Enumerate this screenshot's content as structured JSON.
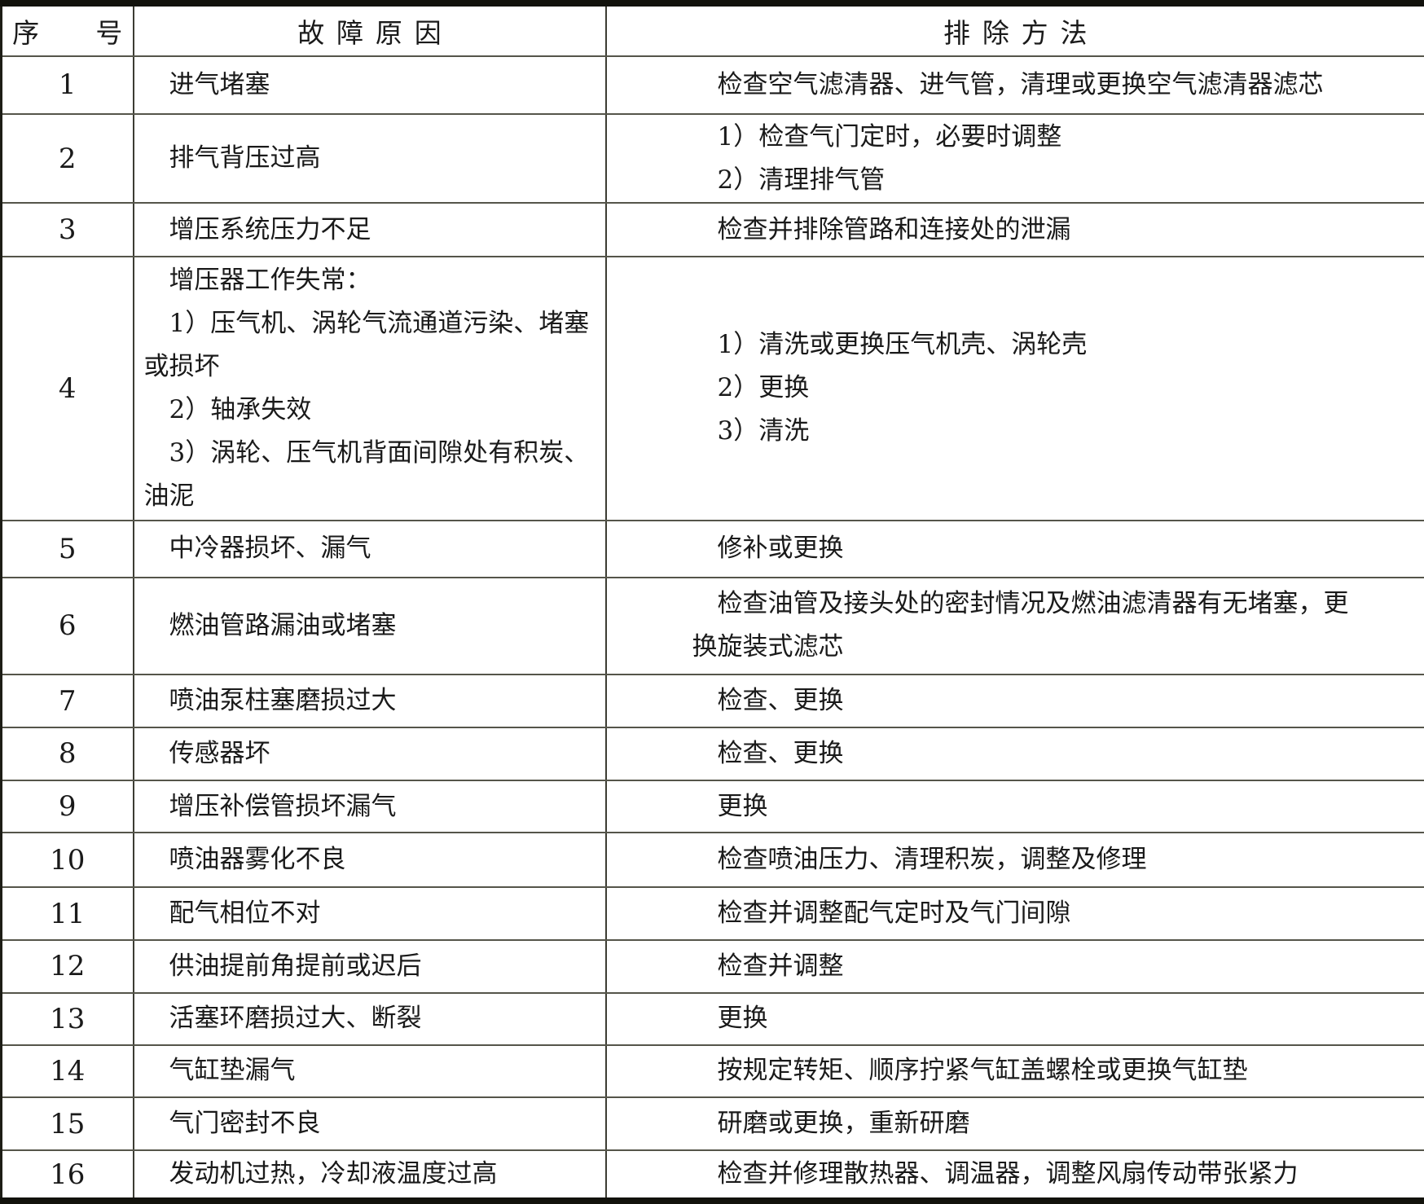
{
  "table": {
    "columns": [
      {
        "key": "index",
        "label": "序号"
      },
      {
        "key": "cause",
        "label": "故障原因"
      },
      {
        "key": "remedy",
        "label": "排除方法"
      }
    ],
    "rows": [
      {
        "index": "1",
        "cause": [
          "进气堵塞"
        ],
        "remedy": [
          "检查空气滤清器、进气管，清理或更换空气滤清器滤芯"
        ]
      },
      {
        "index": "2",
        "cause": [
          "排气背压过高"
        ],
        "remedy": [
          "1）检查气门定时，必要时调整",
          "2）清理排气管"
        ]
      },
      {
        "index": "3",
        "cause": [
          "增压系统压力不足"
        ],
        "remedy": [
          "检查并排除管路和连接处的泄漏"
        ]
      },
      {
        "index": "4",
        "cause": [
          "增压器工作失常：",
          "1）压气机、涡轮气流通道污染、堵塞或损坏",
          "2）轴承失效",
          "3）涡轮、压气机背面间隙处有积炭、油泥"
        ],
        "remedy": [
          "1）清洗或更换压气机壳、涡轮壳",
          "2）更换",
          "3）清洗"
        ]
      },
      {
        "index": "5",
        "cause": [
          "中冷器损坏、漏气"
        ],
        "remedy": [
          "修补或更换"
        ]
      },
      {
        "index": "6",
        "cause": [
          "燃油管路漏油或堵塞"
        ],
        "remedy": [
          "检查油管及接头处的密封情况及燃油滤清器有无堵塞，更换旋装式滤芯"
        ]
      },
      {
        "index": "7",
        "cause": [
          "喷油泵柱塞磨损过大"
        ],
        "remedy": [
          "检查、更换"
        ]
      },
      {
        "index": "8",
        "cause": [
          "传感器坏"
        ],
        "remedy": [
          "检查、更换"
        ]
      },
      {
        "index": "9",
        "cause": [
          "增压补偿管损坏漏气"
        ],
        "remedy": [
          "更换"
        ]
      },
      {
        "index": "10",
        "cause": [
          "喷油器雾化不良"
        ],
        "remedy": [
          "检查喷油压力、清理积炭，调整及修理"
        ]
      },
      {
        "index": "11",
        "cause": [
          "配气相位不对"
        ],
        "remedy": [
          "检查并调整配气定时及气门间隙"
        ]
      },
      {
        "index": "12",
        "cause": [
          "供油提前角提前或迟后"
        ],
        "remedy": [
          "检查并调整"
        ]
      },
      {
        "index": "13",
        "cause": [
          "活塞环磨损过大、断裂"
        ],
        "remedy": [
          "更换"
        ]
      },
      {
        "index": "14",
        "cause": [
          "气缸垫漏气"
        ],
        "remedy": [
          "按规定转矩、顺序拧紧气缸盖螺栓或更换气缸垫"
        ]
      },
      {
        "index": "15",
        "cause": [
          "气门密封不良"
        ],
        "remedy": [
          "研磨或更换，重新研磨"
        ]
      },
      {
        "index": "16",
        "cause": [
          "发动机过热，冷却液温度过高"
        ],
        "remedy": [
          "检查并修理散热器、调温器，调整风扇传动带张紧力"
        ]
      }
    ]
  },
  "colors": {
    "page_background": "#ffffff",
    "text": "#1a1a1a",
    "grid_line": "#55554a",
    "outer_border": "#12120c"
  }
}
